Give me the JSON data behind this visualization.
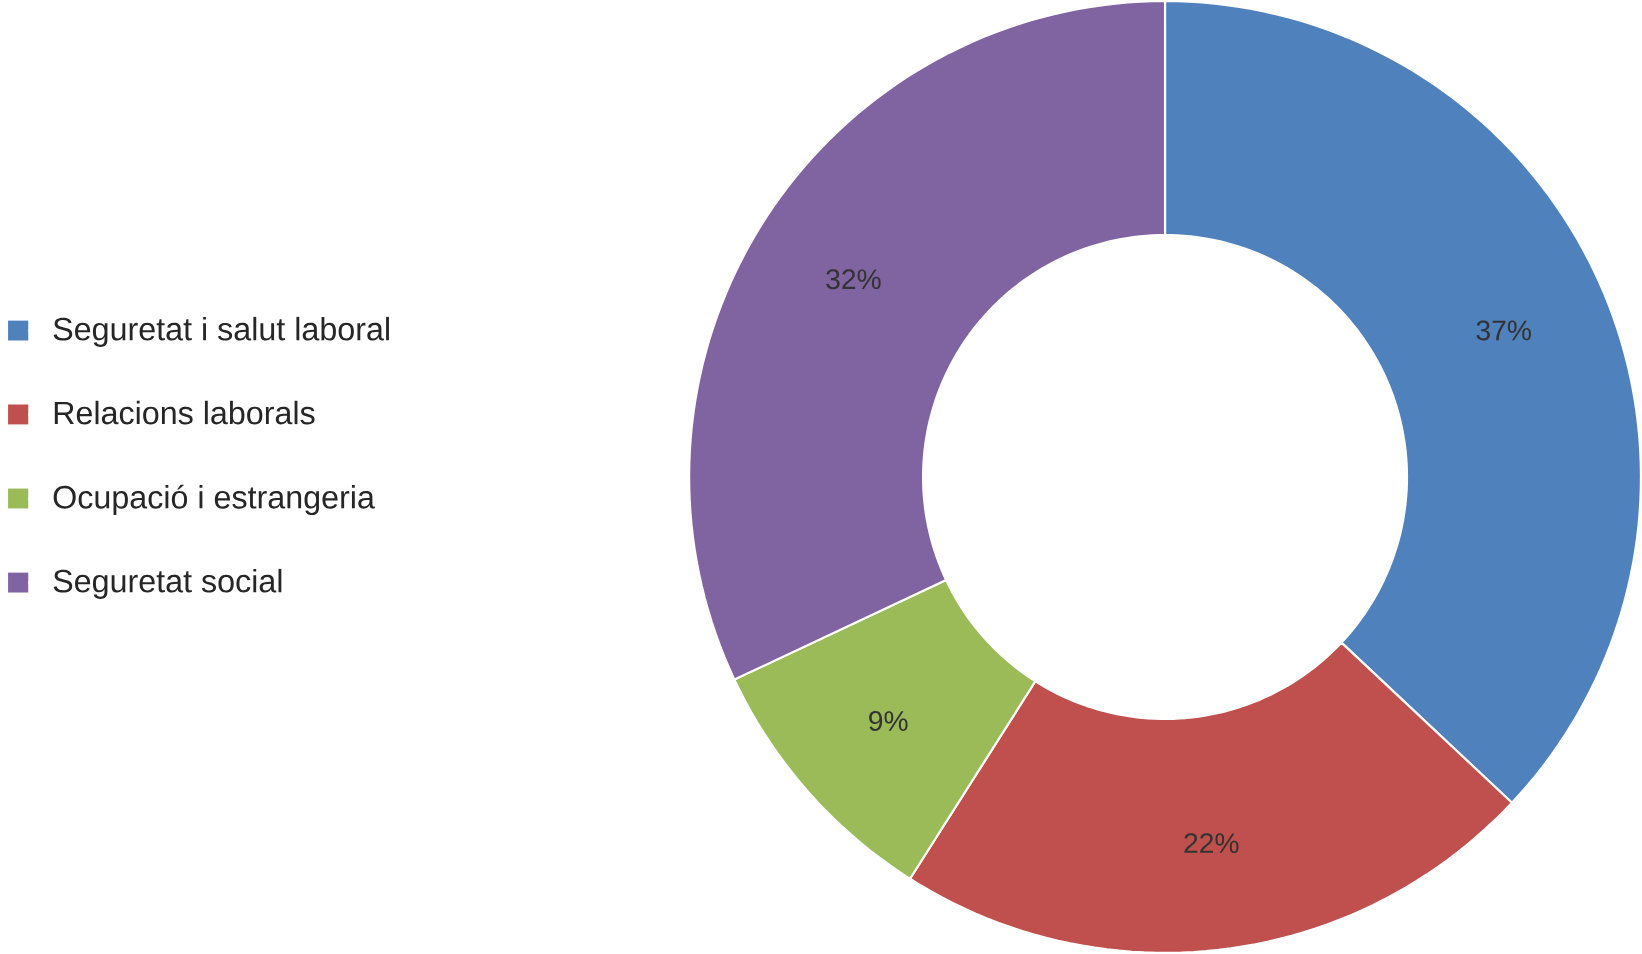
{
  "chart_data": {
    "type": "donut",
    "categories": [
      "Seguretat i salut laboral",
      "Relacions laborals",
      "Ocupació i estrangeria",
      "Seguretat social"
    ],
    "values": [
      37,
      22,
      9,
      32
    ],
    "colors": [
      "#4f81bd",
      "#c0504d",
      "#9bbb59",
      "#8064a2"
    ],
    "value_labels": [
      "37%",
      "22%",
      "9%",
      "32%"
    ],
    "legend": "left"
  }
}
